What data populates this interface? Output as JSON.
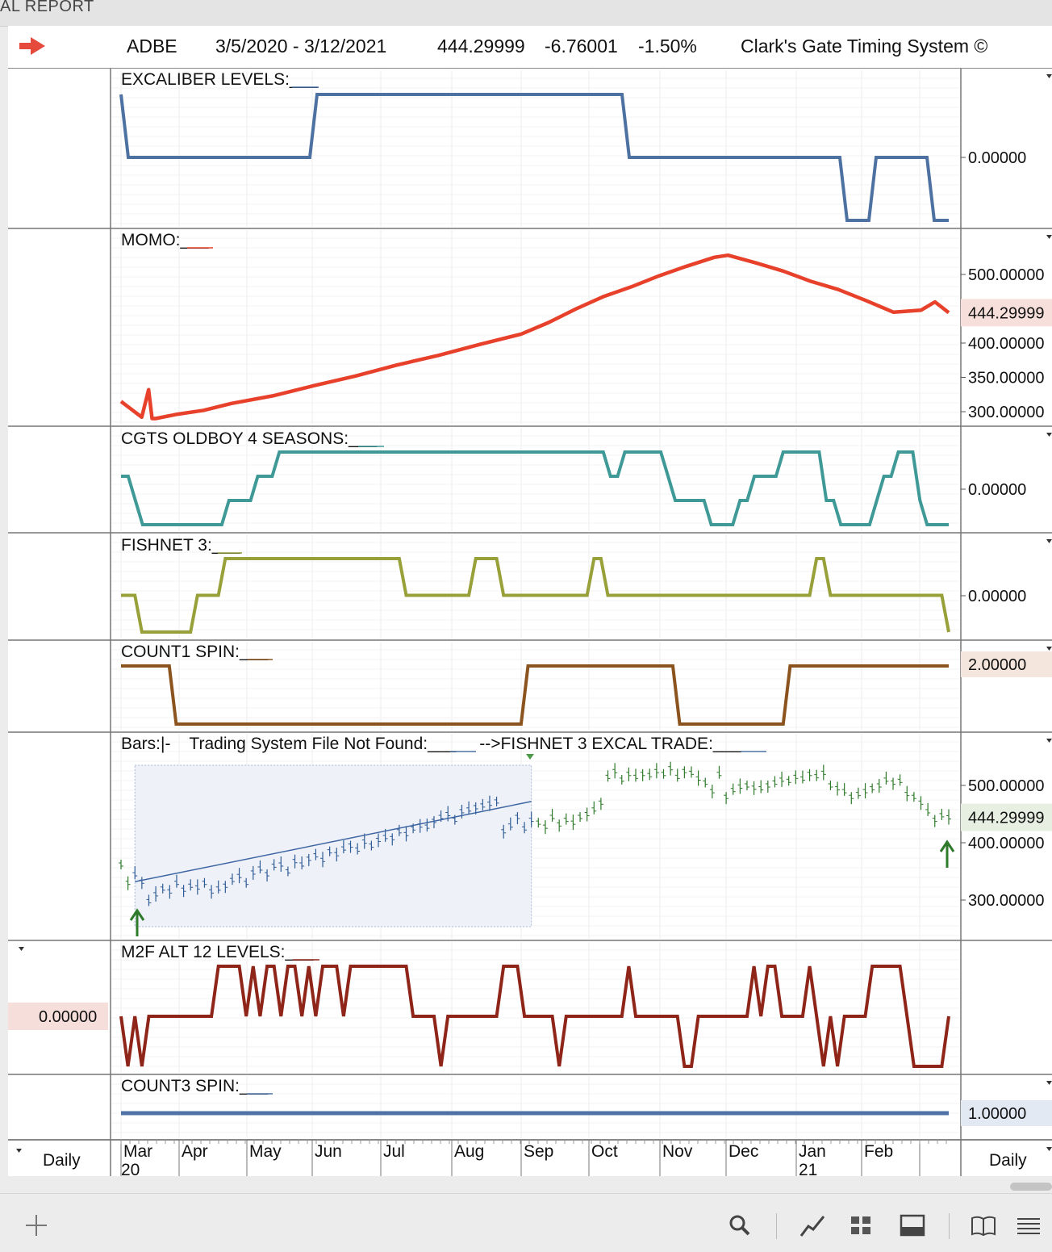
{
  "window": {
    "title_fragment": "AL REPORT"
  },
  "header": {
    "symbol": "ADBE",
    "date_range": "3/5/2020 - 3/12/2021",
    "last": "444.29999",
    "change": "-6.76001",
    "change_pct": "-1.50%",
    "system": "Clark's Gate Timing System ©"
  },
  "axis": {
    "months": [
      "Mar",
      "Apr",
      "May",
      "Jun",
      "Jul",
      "Aug",
      "Sep",
      "Oct",
      "Nov",
      "Dec",
      "Jan",
      "Feb"
    ],
    "years": [
      "20",
      "21"
    ],
    "interval_left": "Daily",
    "interval_right": "Daily"
  },
  "chart_data": [
    {
      "type": "line",
      "title": "EXCALIBER LEVELS:___",
      "color": "#4d72a2",
      "y_label": "0.00000",
      "series": [
        {
          "values": [
            1,
            0,
            0,
            0,
            0,
            0,
            0,
            0,
            0,
            0,
            0,
            0,
            0,
            0,
            0,
            0,
            0,
            0,
            0,
            0,
            0,
            0,
            0,
            0,
            0,
            0,
            0,
            1,
            1,
            1,
            1,
            1,
            1,
            1,
            1,
            1,
            1,
            1,
            1,
            1,
            1,
            1,
            1,
            1,
            1,
            1,
            1,
            1,
            1,
            1,
            1,
            1,
            1,
            1,
            1,
            1,
            1,
            1,
            1,
            1,
            1,
            1,
            1,
            1,
            1,
            1,
            1,
            1,
            1,
            1,
            0,
            0,
            0,
            0,
            0,
            0,
            0,
            0,
            0,
            0,
            0,
            0,
            0,
            0,
            0,
            0,
            0,
            0,
            0,
            0,
            0,
            0,
            0,
            0,
            0,
            0,
            0,
            0,
            0,
            0,
            -1,
            -1,
            -1,
            -1,
            0,
            0,
            0,
            0,
            0,
            0,
            0,
            0,
            -1,
            -1,
            -1
          ]
        }
      ]
    },
    {
      "type": "line",
      "title": "MOMO:___",
      "color": "#e8412b",
      "ylim": [
        285,
        545
      ],
      "y_ticks": [
        "500.00000",
        "444.29999",
        "400.00000",
        "350.00000",
        "300.00000"
      ],
      "series": [
        {
          "name": "MOMO",
          "x": [
            0,
            3,
            4,
            4.5,
            5,
            8,
            12,
            16,
            22,
            28,
            34,
            40,
            46,
            52,
            58,
            62,
            66,
            70,
            74,
            78,
            82,
            86,
            88,
            92,
            96,
            100,
            104,
            108,
            112,
            116,
            118,
            120
          ],
          "values": [
            315,
            292,
            332,
            290,
            290,
            296,
            302,
            312,
            323,
            338,
            352,
            368,
            382,
            398,
            413,
            430,
            450,
            468,
            482,
            498,
            512,
            525,
            528,
            517,
            505,
            490,
            478,
            462,
            445,
            448,
            460,
            444.3
          ]
        }
      ]
    },
    {
      "type": "line",
      "title": "CGTS OLDBOY 4 SEASONS:___",
      "color": "#3f9a97",
      "y_label": "0.00000",
      "series": [
        {
          "values": [
            1,
            1,
            0,
            -1,
            -1,
            -1,
            -1,
            -1,
            -1,
            -1,
            -1,
            -1,
            -1,
            -1,
            -1,
            0,
            0,
            0,
            0,
            1,
            1,
            1,
            2,
            2,
            2,
            2,
            2,
            2,
            2,
            2,
            2,
            2,
            2,
            2,
            2,
            2,
            2,
            2,
            2,
            2,
            2,
            2,
            2,
            2,
            2,
            2,
            2,
            2,
            2,
            2,
            2,
            2,
            2,
            2,
            2,
            2,
            2,
            2,
            2,
            2,
            2,
            2,
            2,
            2,
            2,
            2,
            2,
            2,
            1,
            1,
            2,
            2,
            2,
            2,
            2,
            2,
            1,
            0,
            0,
            0,
            0,
            0,
            -1,
            -1,
            -1,
            -1,
            0,
            0,
            1,
            1,
            1,
            1,
            2,
            2,
            2,
            2,
            2,
            2,
            0,
            0,
            -1,
            -1,
            -1,
            -1,
            -1,
            0,
            1,
            1,
            2,
            2,
            2,
            0,
            -1,
            -1,
            -1,
            -1
          ]
        }
      ]
    },
    {
      "type": "line",
      "title": "FISHNET 3:___",
      "color": "#98a03a",
      "y_label": "0.00000",
      "series": [
        {
          "values": [
            0,
            0,
            0,
            -1,
            -1,
            -1,
            -1,
            -1,
            -1,
            -1,
            -1,
            0,
            0,
            0,
            0,
            1,
            1,
            1,
            1,
            1,
            1,
            1,
            1,
            1,
            1,
            1,
            1,
            1,
            1,
            1,
            1,
            1,
            1,
            1,
            1,
            1,
            1,
            1,
            1,
            1,
            1,
            0,
            0,
            0,
            0,
            0,
            0,
            0,
            0,
            0,
            0,
            1,
            1,
            1,
            1,
            0,
            0,
            0,
            0,
            0,
            0,
            0,
            0,
            0,
            0,
            0,
            0,
            0,
            1,
            1,
            0,
            0,
            0,
            0,
            0,
            0,
            0,
            0,
            0,
            0,
            0,
            0,
            0,
            0,
            0,
            0,
            0,
            0,
            0,
            0,
            0,
            0,
            0,
            0,
            0,
            0,
            0,
            0,
            0,
            0,
            1,
            1,
            0,
            0,
            0,
            0,
            0,
            0,
            0,
            0,
            0,
            0,
            0,
            0,
            0,
            0,
            0,
            0,
            0,
            -1
          ]
        }
      ]
    },
    {
      "type": "line",
      "title": "COUNT1 SPIN:___",
      "color": "#8b531e",
      "y_label": "2.00000",
      "y_label_value": 2,
      "series": [
        {
          "values": [
            1,
            1,
            1,
            1,
            1,
            1,
            1,
            1,
            0,
            0,
            0,
            0,
            0,
            0,
            0,
            0,
            0,
            0,
            0,
            0,
            0,
            0,
            0,
            0,
            0,
            0,
            0,
            0,
            0,
            0,
            0,
            0,
            0,
            0,
            0,
            0,
            0,
            0,
            0,
            0,
            0,
            0,
            0,
            0,
            0,
            0,
            0,
            0,
            0,
            0,
            0,
            0,
            0,
            0,
            0,
            0,
            0,
            0,
            0,
            1,
            1,
            1,
            1,
            1,
            1,
            1,
            1,
            1,
            1,
            1,
            1,
            1,
            1,
            1,
            1,
            1,
            1,
            1,
            1,
            1,
            1,
            0,
            0,
            0,
            0,
            0,
            0,
            0,
            0,
            0,
            0,
            0,
            0,
            0,
            0,
            0,
            0,
            1,
            1,
            1,
            1,
            1,
            1,
            1,
            1,
            1,
            1,
            1,
            1,
            1,
            1,
            1,
            1,
            1,
            1,
            1,
            1,
            1,
            1,
            1,
            1
          ]
        }
      ]
    },
    {
      "type": "line",
      "title": "Bars:|-    Trading System File Not Found:___     -->FISHNET 3 EXCAL TRADE:___",
      "ylim": [
        260,
        560
      ],
      "y_ticks": [
        "500.00000",
        "444.29999",
        "400.00000",
        "300.00000"
      ],
      "series": [
        {
          "name": "ADBE",
          "values": [
            362,
            330,
            345,
            332,
            298,
            310,
            320,
            315,
            330,
            318,
            325,
            322,
            330,
            315,
            320,
            325,
            335,
            342,
            330,
            348,
            355,
            345,
            360,
            362,
            350,
            368,
            362,
            372,
            378,
            370,
            385,
            380,
            390,
            395,
            388,
            402,
            395,
            405,
            410,
            408,
            420,
            415,
            425,
            430,
            428,
            438,
            445,
            450,
            440,
            455,
            458,
            462,
            465,
            468,
            472,
            420,
            430,
            445,
            425,
            440,
            435,
            428,
            445,
            432,
            440,
            435,
            445,
            450,
            458,
            470,
            515,
            525,
            510,
            520,
            515,
            520,
            518,
            525,
            520,
            530,
            515,
            525,
            522,
            512,
            505,
            490,
            520,
            480,
            492,
            498,
            500,
            496,
            495,
            500,
            505,
            510,
            508,
            515,
            512,
            520,
            516,
            522,
            500,
            495,
            490,
            480,
            485,
            490,
            495,
            500,
            510,
            505,
            508,
            485,
            480,
            470,
            455,
            440,
            448,
            444.3
          ]
        }
      ]
    },
    {
      "type": "line",
      "title": "M2F ALT 12 LEVELS:___",
      "color": "#8e2518",
      "y_label": "0.00000",
      "series": [
        {
          "values": [
            0,
            -1,
            0,
            -1,
            0,
            0,
            0,
            0,
            0,
            0,
            0,
            0,
            0,
            0,
            1,
            1,
            1,
            1,
            0,
            1,
            0,
            1,
            1,
            0,
            1,
            1,
            0,
            1,
            0,
            1,
            1,
            1,
            0,
            1,
            1,
            1,
            1,
            1,
            1,
            1,
            1,
            1,
            0,
            0,
            0,
            0,
            -1,
            0,
            0,
            0,
            0,
            0,
            0,
            0,
            0,
            1,
            1,
            1,
            0,
            0,
            0,
            0,
            0,
            -1,
            0,
            0,
            0,
            0,
            0,
            0,
            0,
            0,
            0,
            1,
            0,
            0,
            0,
            0,
            0,
            0,
            0,
            -1,
            -1,
            0,
            0,
            0,
            0,
            0,
            0,
            0,
            0,
            1,
            0,
            1,
            1,
            0,
            0,
            0,
            0,
            1,
            0,
            -1,
            0,
            -1,
            0,
            0,
            0,
            0,
            1,
            1,
            1,
            1,
            1,
            0,
            -1,
            -1,
            -1,
            -1,
            -1,
            0
          ]
        }
      ]
    },
    {
      "type": "line",
      "title": "COUNT3 SPIN:___",
      "color": "#4e72a6",
      "y_label": "1.00000",
      "series": [
        {
          "values": [
            1,
            1
          ]
        }
      ]
    }
  ],
  "toolbar": {
    "icons": [
      "plus-icon",
      "search-icon",
      "line-chart-icon",
      "grid-icon",
      "layout-icon",
      "book-icon",
      "list-icon"
    ]
  }
}
